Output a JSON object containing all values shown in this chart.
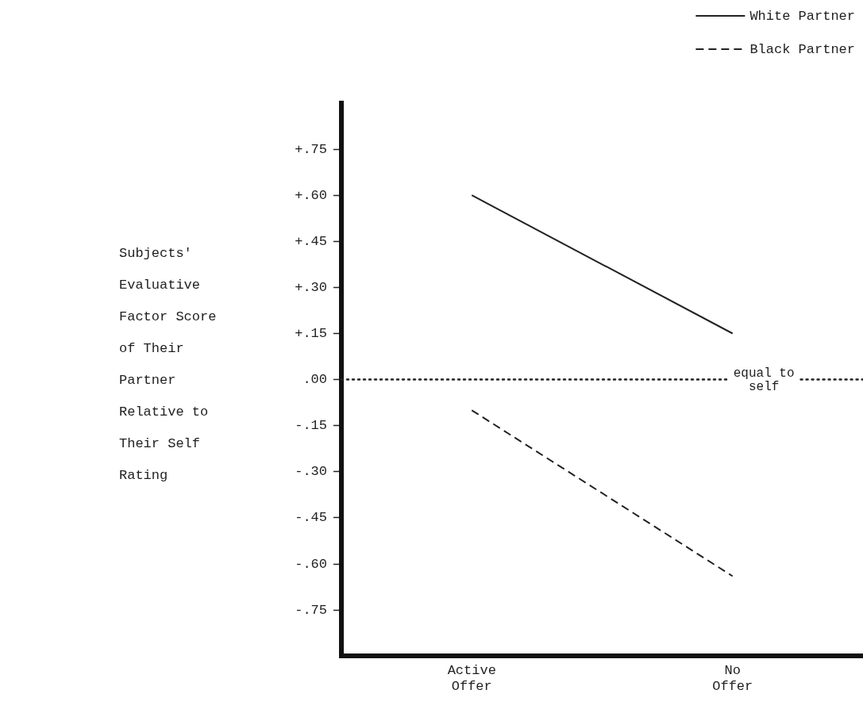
{
  "chart_data": {
    "type": "line",
    "ylabel": "Subjects' Evaluative Factor Score of Their Partner Relative to Their Self Rating",
    "categories": [
      "Active Offer",
      "No Offer"
    ],
    "series": [
      {
        "name": "White Partner",
        "color": "#222222",
        "line_style": "solid",
        "values": [
          0.6,
          0.15
        ]
      },
      {
        "name": "Black Partner",
        "color": "#222222",
        "line_style": "dashed",
        "values": [
          -0.1,
          -0.64
        ]
      }
    ],
    "ylim": [
      -0.9,
      0.9
    ],
    "yticks": [
      {
        "value": -0.75,
        "label": "-.75"
      },
      {
        "value": -0.6,
        "label": "-.60"
      },
      {
        "value": -0.45,
        "label": "-.45"
      },
      {
        "value": -0.3,
        "label": "-.30"
      },
      {
        "value": -0.15,
        "label": "-.15"
      },
      {
        "value": 0,
        "label": ".00"
      },
      {
        "value": 0.15,
        "label": "+.15"
      },
      {
        "value": 0.3,
        "label": "+.30"
      },
      {
        "value": 0.45,
        "label": "+.45"
      },
      {
        "value": 0.6,
        "label": "+.60"
      },
      {
        "value": 0.75,
        "label": "+.75"
      }
    ],
    "ref_lines": [
      {
        "axis": "y",
        "value": 0,
        "label": "equal to self",
        "line_style": "dotted",
        "color": "#222222"
      }
    ],
    "legend": "top right",
    "marker": "none",
    "grid": false
  }
}
